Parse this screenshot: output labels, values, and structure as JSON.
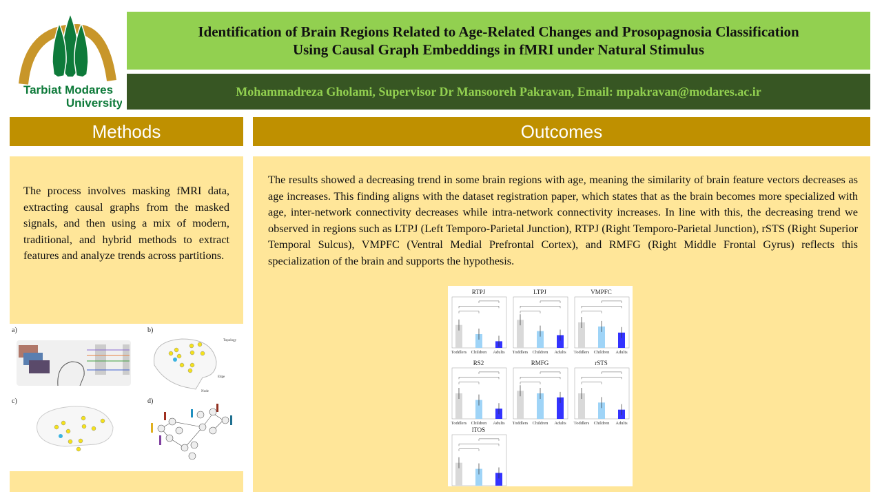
{
  "logo": {
    "text_line1": "Tarbiat Modares",
    "text_line2": "University",
    "colors": {
      "arch": "#c8962a",
      "trees": "#0e7a3a"
    }
  },
  "header": {
    "title": "Identification of Brain Regions Related to Age-Related Changes and Prosopagnosia Classification\nUsing Causal Graph Embeddings in fMRI under Natural Stimulus",
    "authors": "Mohammadreza Gholami, Supervisor Dr Mansooreh Pakravan, Email: mpakravan@modares.ac.ir"
  },
  "colors": {
    "title_bar": "#92d050",
    "author_bar": "#375623",
    "section_header": "#bf9000",
    "panel_bg": "#ffe699"
  },
  "methods": {
    "heading": "Methods",
    "text": "The process involves masking fMRI data, extracting causal graphs from the masked signals, and then using a mix of modern, traditional, and hybrid methods to extract features and analyze trends across partitions.",
    "figure": {
      "panel_labels": [
        "a)",
        "b)",
        "c)",
        "d)"
      ],
      "annotations": {
        "topology": "Topology",
        "edge": "Edge",
        "node": "Node"
      }
    }
  },
  "outcomes": {
    "heading": "Outcomes",
    "text": "The results showed a decreasing trend in some brain regions with age, meaning the similarity of brain feature vectors decreases as age increases. This finding aligns with the dataset registration paper, which states that as the brain becomes more specialized with age, inter-network connectivity decreases while intra-network connectivity increases. In line with this, the decreasing trend we observed in regions such as LTPJ (Left Temporo-Parietal Junction), RTPJ (Right Temporo-Parietal Junction), rSTS (Right Superior Temporal Sulcus), VMPFC (Ventral Medial Prefrontal Cortex), and RMFG (Right Middle Frontal Gyrus) reflects this specialization of the brain and supports the hypothesis.",
    "figure": {
      "categories": [
        "Toddlers",
        "Children",
        "Adults"
      ],
      "bar_colors": [
        "#d9d9d9",
        "#9fd4f7",
        "#3333ff"
      ],
      "panels": [
        {
          "title": "RTPJ",
          "values": [
            0.45,
            0.27,
            0.13
          ]
        },
        {
          "title": "LTPJ",
          "values": [
            0.55,
            0.33,
            0.25
          ]
        },
        {
          "title": "VMPFC",
          "values": [
            0.5,
            0.42,
            0.3
          ]
        },
        {
          "title": "RS2",
          "values": [
            0.5,
            0.37,
            0.2
          ]
        },
        {
          "title": "RMFG",
          "values": [
            0.55,
            0.5,
            0.42
          ]
        },
        {
          "title": "rSTS",
          "values": [
            0.5,
            0.32,
            0.18
          ]
        },
        {
          "title": "lTOS",
          "values": [
            0.45,
            0.33,
            0.25
          ]
        }
      ]
    }
  }
}
